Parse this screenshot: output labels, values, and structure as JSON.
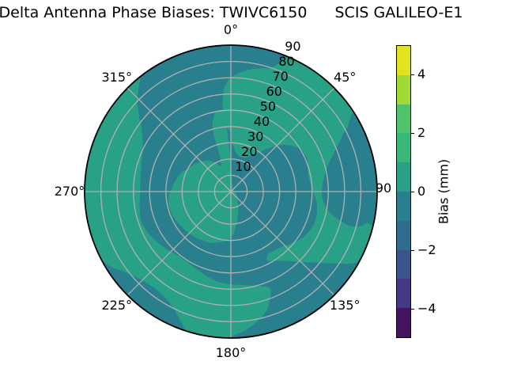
{
  "figure": {
    "title_left": "Delta Antenna Phase Biases: TWIVC6150",
    "title_right": "SCIS GALILEO-E1"
  },
  "chart_data": {
    "type": "polar_contour",
    "title": "Delta Antenna Phase Biases: TWIVC6150    SCIS GALILEO-E1",
    "grid_color": "#b0b0b0",
    "outline_color": "#000000",
    "angular_ticks": [
      {
        "label": "0°",
        "deg": 0
      },
      {
        "label": "45°",
        "deg": 45
      },
      {
        "label": "90",
        "deg": 90
      },
      {
        "label": "135°",
        "deg": 135
      },
      {
        "label": "180°",
        "deg": 180
      },
      {
        "label": "225°",
        "deg": 225
      },
      {
        "label": "270°",
        "deg": 270
      },
      {
        "label": "315°",
        "deg": 315
      }
    ],
    "radial_axis": {
      "max": 90,
      "tick_values": [
        10,
        20,
        30,
        40,
        50,
        60,
        70,
        80,
        90
      ],
      "tick_labels": [
        "10",
        "20",
        "30",
        "40",
        "50",
        "60",
        "70",
        "80",
        "90"
      ],
      "label_angle_deg": 22.5
    },
    "levels": {
      "background_band_mm": "-1 to 0",
      "background_color": "#2a7f8e",
      "positive_band_mm": "0 to 1",
      "positive_color": "#29a186"
    },
    "regions": [
      {
        "name": "positive-band-north-east",
        "band_mm": "0 to 1",
        "color": "#29a186",
        "points": [
          [
            352,
            44
          ],
          [
            354,
            50
          ],
          [
            355,
            57
          ],
          [
            356,
            63
          ],
          [
            358,
            67
          ],
          [
            0,
            70
          ],
          [
            4,
            73
          ],
          [
            9,
            76
          ],
          [
            14,
            78
          ],
          [
            18,
            80
          ],
          [
            21,
            85
          ],
          [
            23,
            90
          ],
          [
            32,
            90
          ],
          [
            42,
            90
          ],
          [
            52,
            90
          ],
          [
            62,
            90
          ],
          [
            72,
            90
          ],
          [
            82,
            90
          ],
          [
            92,
            90
          ],
          [
            100,
            90
          ],
          [
            108,
            90
          ],
          [
            114,
            90
          ],
          [
            118,
            90
          ],
          [
            121,
            86
          ],
          [
            125,
            77
          ],
          [
            130,
            68
          ],
          [
            136,
            60
          ],
          [
            142,
            54
          ],
          [
            148,
            50
          ],
          [
            152,
            48
          ],
          [
            150,
            45
          ],
          [
            145,
            45
          ],
          [
            138,
            46
          ],
          [
            131,
            49
          ],
          [
            124,
            52
          ],
          [
            117,
            54
          ],
          [
            109,
            55
          ],
          [
            100,
            54
          ],
          [
            91,
            51
          ],
          [
            83,
            49
          ],
          [
            75,
            49
          ],
          [
            67,
            51
          ],
          [
            59,
            50
          ],
          [
            52,
            46
          ],
          [
            46,
            41
          ],
          [
            41,
            35
          ],
          [
            36,
            30
          ],
          [
            30,
            26
          ],
          [
            24,
            23
          ],
          [
            17,
            22
          ],
          [
            10,
            23
          ],
          [
            5,
            26
          ],
          [
            1,
            31
          ],
          [
            359,
            37
          ]
        ]
      },
      {
        "name": "positive-band-center",
        "band_mm": "0 to 1",
        "color": "#29a186",
        "points": [
          [
            354,
            50
          ],
          [
            356,
            42
          ],
          [
            357,
            34
          ],
          [
            358,
            26
          ],
          [
            0,
            18
          ],
          [
            2,
            10
          ],
          [
            15,
            4
          ],
          [
            40,
            2
          ],
          [
            70,
            2
          ],
          [
            100,
            3
          ],
          [
            130,
            5
          ],
          [
            148,
            8
          ],
          [
            158,
            12
          ],
          [
            166,
            17
          ],
          [
            172,
            22
          ],
          [
            178,
            27
          ],
          [
            185,
            30
          ],
          [
            193,
            32
          ],
          [
            202,
            34
          ],
          [
            212,
            35
          ],
          [
            222,
            36
          ],
          [
            232,
            37
          ],
          [
            242,
            38
          ],
          [
            252,
            39
          ],
          [
            262,
            39
          ],
          [
            271,
            37
          ],
          [
            280,
            35
          ],
          [
            289,
            33
          ],
          [
            298,
            30
          ],
          [
            307,
            28
          ],
          [
            316,
            26
          ],
          [
            325,
            23
          ],
          [
            332,
            20
          ],
          [
            338,
            17
          ],
          [
            342,
            20
          ],
          [
            343,
            27
          ],
          [
            343,
            34
          ],
          [
            344,
            41
          ],
          [
            347,
            47
          ],
          [
            350,
            50
          ]
        ]
      },
      {
        "name": "positive-band-west-south",
        "band_mm": "0 to 1",
        "color": "#29a186",
        "points": [
          [
            158,
            64
          ],
          [
            165,
            60
          ],
          [
            172,
            58
          ],
          [
            180,
            57
          ],
          [
            188,
            56
          ],
          [
            196,
            54
          ],
          [
            204,
            52
          ],
          [
            212,
            51
          ],
          [
            220,
            51
          ],
          [
            228,
            53
          ],
          [
            236,
            55
          ],
          [
            244,
            57
          ],
          [
            252,
            58
          ],
          [
            260,
            57
          ],
          [
            268,
            56
          ],
          [
            276,
            56
          ],
          [
            284,
            57
          ],
          [
            292,
            59
          ],
          [
            299,
            62
          ],
          [
            305,
            67
          ],
          [
            310,
            74
          ],
          [
            314,
            80
          ],
          [
            318,
            85
          ],
          [
            321,
            90
          ],
          [
            312,
            90
          ],
          [
            302,
            90
          ],
          [
            292,
            90
          ],
          [
            282,
            90
          ],
          [
            272,
            90
          ],
          [
            262,
            90
          ],
          [
            252,
            90
          ],
          [
            243,
            90
          ],
          [
            238,
            87
          ],
          [
            233,
            82
          ],
          [
            227,
            78
          ],
          [
            221,
            76
          ],
          [
            215,
            76
          ],
          [
            209,
            78
          ],
          [
            204,
            82
          ],
          [
            200,
            87
          ],
          [
            197,
            90
          ],
          [
            189,
            90
          ],
          [
            182,
            90
          ],
          [
            178,
            88
          ],
          [
            173,
            85
          ],
          [
            168,
            81
          ],
          [
            163,
            76
          ],
          [
            160,
            70
          ]
        ]
      },
      {
        "name": "negative-inclusion-east",
        "band_mm": "-1 to 0",
        "color": "#2a7f8e",
        "points": [
          [
            58,
            90
          ],
          [
            61,
            82
          ],
          [
            65,
            74
          ],
          [
            70,
            67
          ],
          [
            76,
            61
          ],
          [
            84,
            57
          ],
          [
            92,
            56
          ],
          [
            99,
            59
          ],
          [
            103,
            64
          ],
          [
            105,
            70
          ],
          [
            106,
            76
          ],
          [
            105,
            82
          ],
          [
            103,
            86
          ],
          [
            102,
            90
          ],
          [
            88,
            90
          ],
          [
            73,
            90
          ]
        ]
      }
    ],
    "colorbar": {
      "label": "Bias (mm)",
      "min": -5,
      "max": 5,
      "tick_values": [
        4,
        2,
        0,
        -2,
        -4
      ],
      "tick_labels": [
        "4",
        "2",
        "0",
        "−2",
        "−4"
      ],
      "segment_colors_top_to_bottom": [
        "#e2e31f",
        "#a0d938",
        "#50c46a",
        "#37b878",
        "#29a186",
        "#2a7f8e",
        "#2f6c8e",
        "#3a548c",
        "#443a83",
        "#46135e"
      ]
    }
  }
}
